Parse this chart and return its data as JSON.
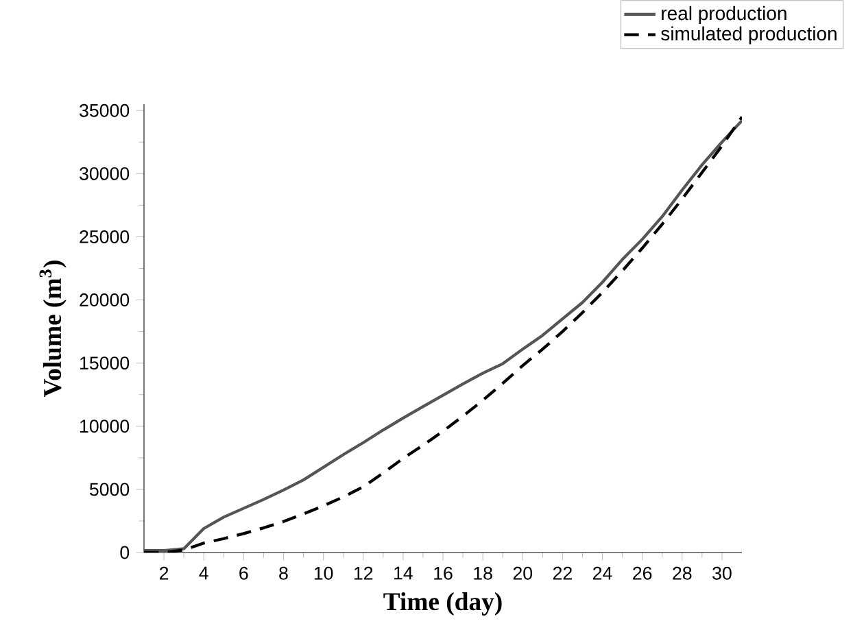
{
  "chart_data": {
    "type": "line",
    "xlabel": "Time (day)",
    "ylabel": "Volume (m$^{3}$)",
    "x": [
      1,
      2,
      3,
      4,
      5,
      6,
      7,
      8,
      9,
      10,
      11,
      12,
      13,
      14,
      15,
      16,
      17,
      18,
      19,
      20,
      21,
      22,
      23,
      24,
      25,
      26,
      27,
      28,
      29,
      30,
      31
    ],
    "series": [
      {
        "name": "real production",
        "color": "#555555",
        "line_style": "solid",
        "values": [
          150,
          150,
          300,
          1900,
          2800,
          3500,
          4200,
          4950,
          5750,
          6750,
          7750,
          8700,
          9700,
          10650,
          11550,
          12450,
          13350,
          14200,
          14950,
          16100,
          17200,
          18500,
          19800,
          21400,
          23200,
          24800,
          26600,
          28700,
          30700,
          32500,
          34200
        ]
      },
      {
        "name": "simulated production",
        "color": "#000000",
        "line_style": "dashed",
        "values": [
          0,
          0,
          200,
          750,
          1100,
          1500,
          1950,
          2450,
          3050,
          3700,
          4400,
          5200,
          6300,
          7450,
          8500,
          9600,
          10800,
          12050,
          13400,
          14800,
          16100,
          17500,
          19000,
          20600,
          22300,
          24100,
          26000,
          28000,
          30100,
          32200,
          34500
        ]
      }
    ],
    "xlim": [
      1,
      31
    ],
    "ylim": [
      0,
      35500
    ],
    "xticks": [
      2,
      4,
      6,
      8,
      10,
      12,
      14,
      16,
      18,
      20,
      22,
      24,
      26,
      28,
      30
    ],
    "yticks": [
      0,
      5000,
      10000,
      15000,
      20000,
      25000,
      30000,
      35000
    ],
    "grid": false,
    "legend": "top right",
    "marker": "none"
  }
}
